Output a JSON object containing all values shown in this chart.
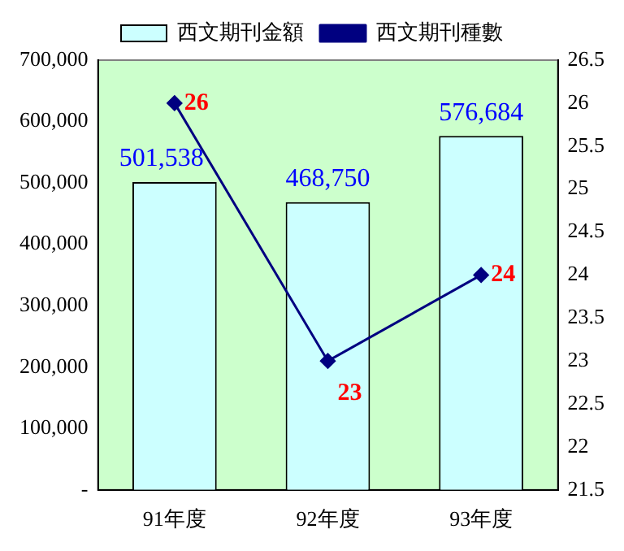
{
  "chart_data": {
    "type": "bar",
    "categories": [
      "91年度",
      "92年度",
      "93年度"
    ],
    "series": [
      {
        "name": "西文期刊金額",
        "color": "#ccffff",
        "values": [
          501538,
          468750,
          576684
        ],
        "value_labels": [
          "501,538",
          "468,750",
          "576,684"
        ]
      },
      {
        "name": "西文期刊種數",
        "type": "line",
        "axis": "y2",
        "color": "#000080",
        "values": [
          26,
          23,
          24
        ],
        "value_labels": [
          "26",
          "23",
          "24"
        ]
      }
    ],
    "ylim": [
      0,
      700000
    ],
    "yticks": [
      {
        "value": 0,
        "label": "-"
      },
      {
        "value": 100000,
        "label": "100,000"
      },
      {
        "value": 200000,
        "label": "200,000"
      },
      {
        "value": 300000,
        "label": "300,000"
      },
      {
        "value": 400000,
        "label": "400,000"
      },
      {
        "value": 500000,
        "label": "500,000"
      },
      {
        "value": 600000,
        "label": "600,000"
      },
      {
        "value": 700000,
        "label": "700,000"
      }
    ],
    "y2lim": [
      21.5,
      26.5
    ],
    "y2ticks": [
      21.5,
      22,
      22.5,
      23,
      23.5,
      24,
      24.5,
      25,
      25.5,
      26,
      26.5
    ],
    "legend": "top",
    "grid": false,
    "marker": "diamond",
    "line_style": "solid"
  }
}
